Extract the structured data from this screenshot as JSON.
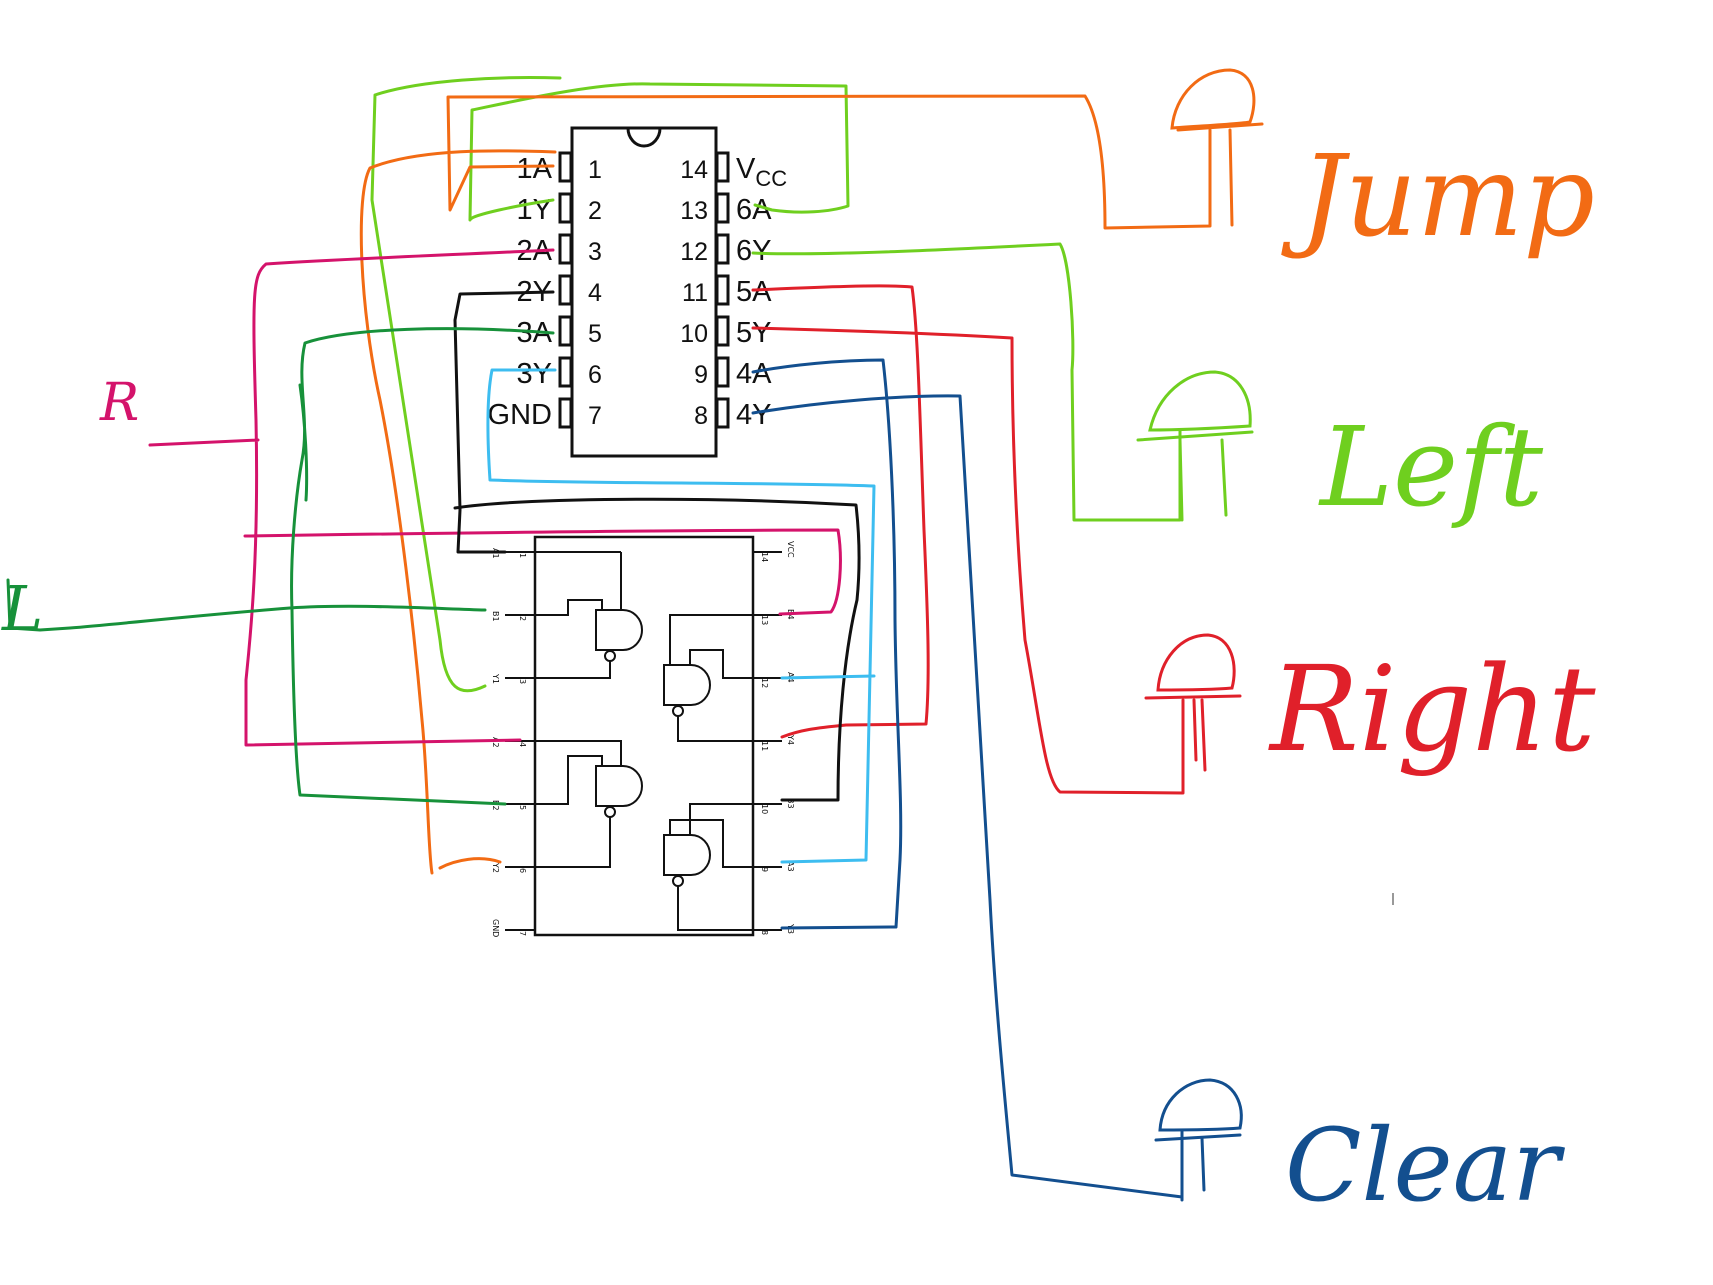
{
  "top_chip": {
    "left_pins": [
      {
        "label": "1A",
        "num": "1"
      },
      {
        "label": "1Y",
        "num": "2"
      },
      {
        "label": "2A",
        "num": "3"
      },
      {
        "label": "2Y",
        "num": "4"
      },
      {
        "label": "3A",
        "num": "5"
      },
      {
        "label": "3Y",
        "num": "6"
      },
      {
        "label": "GND",
        "num": "7"
      }
    ],
    "right_pins": [
      {
        "label": "V",
        "sub": "CC",
        "num": "14"
      },
      {
        "label": "6A",
        "num": "13"
      },
      {
        "label": "6Y",
        "num": "12"
      },
      {
        "label": "5A",
        "num": "11"
      },
      {
        "label": "5Y",
        "num": "10"
      },
      {
        "label": "4A",
        "num": "9"
      },
      {
        "label": "4Y",
        "num": "8"
      }
    ]
  },
  "bottom_chip": {
    "left_pins": [
      {
        "label": "A1",
        "num": "1"
      },
      {
        "label": "B1",
        "num": "2"
      },
      {
        "label": "Y1",
        "num": "3"
      },
      {
        "label": "A2",
        "num": "4"
      },
      {
        "label": "B2",
        "num": "5"
      },
      {
        "label": "Y2",
        "num": "6"
      },
      {
        "label": "GND",
        "num": "7"
      }
    ],
    "right_pins": [
      {
        "label": "VCC",
        "num": "14"
      },
      {
        "label": "B4",
        "num": "13"
      },
      {
        "label": "A4",
        "num": "12"
      },
      {
        "label": "Y4",
        "num": "11"
      },
      {
        "label": "B3",
        "num": "10"
      },
      {
        "label": "A3",
        "num": "9"
      },
      {
        "label": "Y3",
        "num": "8"
      }
    ]
  },
  "handwritten": {
    "r_label": "R",
    "l_label": "L",
    "jump": "Jump",
    "left": "Left",
    "right": "Right",
    "clear": "Clear"
  },
  "colors": {
    "orange": "#f26b14",
    "light_green": "#6fcf1f",
    "dark_green": "#17913a",
    "magenta": "#d4136b",
    "red": "#e0202a",
    "black": "#111111",
    "sky_blue": "#3dbdf0",
    "navy": "#134f8f"
  }
}
